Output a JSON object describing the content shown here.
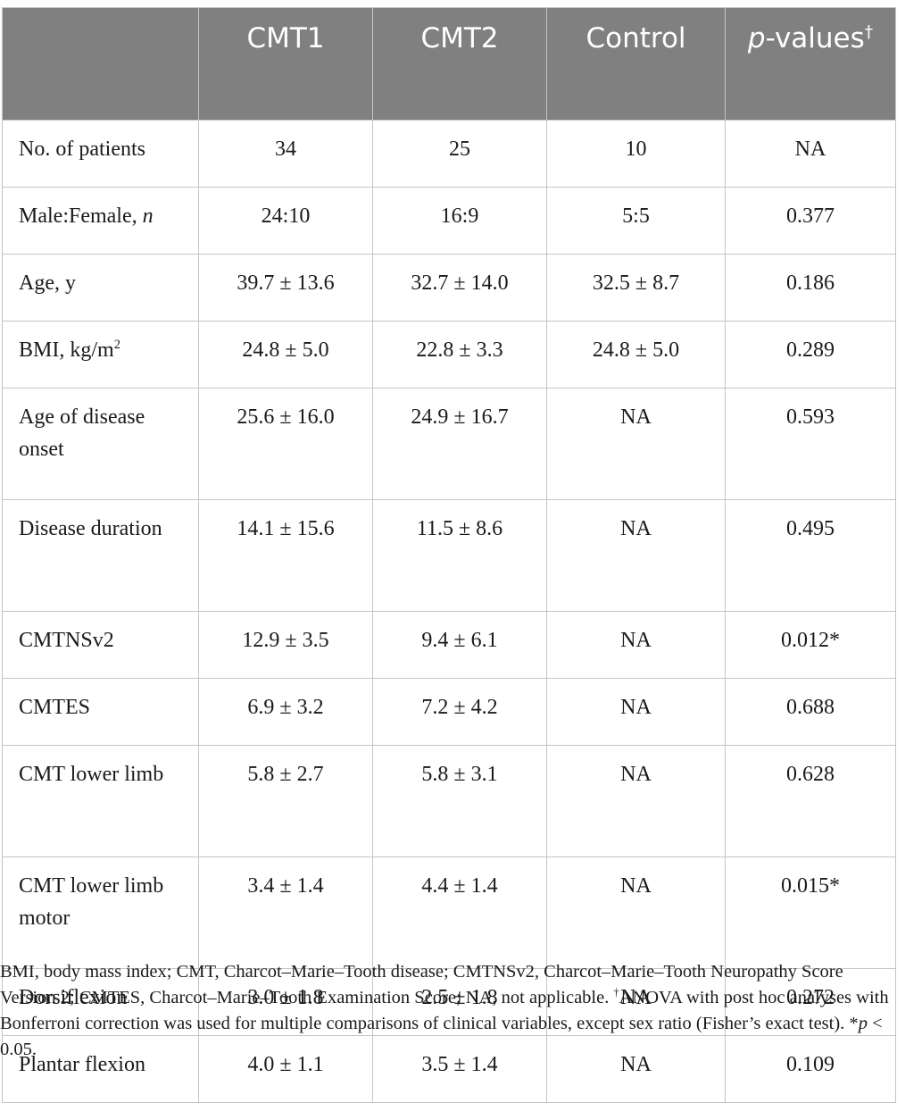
{
  "table": {
    "header": {
      "cmt1": "CMT1",
      "cmt2": "CMT2",
      "control": "Control",
      "p_italic": "p",
      "p_rest": "-values",
      "p_mark": "†"
    },
    "rows": [
      {
        "label": "No. of patients",
        "cmt1": "34",
        "cmt2": "25",
        "control": "10",
        "p": "NA"
      },
      {
        "label": "Male:Female, ",
        "label_italic": "n",
        "cmt1": "24:10",
        "cmt2": "16:9",
        "control": "5:5",
        "p": "0.377"
      },
      {
        "label": "Age, y",
        "cmt1": "39.7 ± 13.6",
        "cmt2": "32.7 ± 14.0",
        "control": "32.5 ± 8.7",
        "p": "0.186"
      },
      {
        "label": "BMI, kg/m",
        "label_sup": "2",
        "cmt1": "24.8 ± 5.0",
        "cmt2": "22.8 ± 3.3",
        "control": "24.8 ± 5.0",
        "p": "0.289"
      },
      {
        "label": "Age of disease onset",
        "cmt1": "25.6 ± 16.0",
        "cmt2": "24.9 ± 16.7",
        "control": "NA",
        "p": "0.593"
      },
      {
        "label": "Disease duration",
        "cmt1": "14.1 ± 15.6",
        "cmt2": "11.5 ± 8.6",
        "control": "NA",
        "p": "0.495"
      },
      {
        "label": "CMTNSv2",
        "cmt1": "12.9 ± 3.5",
        "cmt2": "9.4 ± 6.1",
        "control": "NA",
        "p": "0.012*"
      },
      {
        "label": "CMTES",
        "cmt1": "6.9 ± 3.2",
        "cmt2": "7.2 ± 4.2",
        "control": "NA",
        "p": "0.688"
      },
      {
        "label": "CMT lower limb",
        "cmt1": "5.8 ± 2.7",
        "cmt2": "5.8 ± 3.1",
        "control": "NA",
        "p": "0.628"
      },
      {
        "label": "CMT lower limb motor",
        "cmt1": "3.4 ± 1.4",
        "cmt2": "4.4 ± 1.4",
        "control": "NA",
        "p": "0.015*"
      },
      {
        "label": "Dorsiflexion",
        "cmt1": "3.0 ± 1.8",
        "cmt2": "2.5 ± 1.8",
        "control": "NA",
        "p": "0.272"
      },
      {
        "label": "Plantar flexion",
        "cmt1": "4.0 ± 1.1",
        "cmt2": "3.5 ± 1.4",
        "control": "NA",
        "p": "0.109"
      }
    ]
  },
  "footnote": {
    "part1": "BMI, body mass index; CMT, Charcot–Marie–Tooth disease; CMTNSv2, Charcot–Marie–Tooth Neuropathy Score Version 2; CMTES, Charcot–Marie–Tooth Examination Score; NA, not applicable. ",
    "dagger": "†",
    "part2": "ANOVA with post hoc analyses with Bonferroni correction was used for multiple comparisons of clinical variables, except sex ratio (Fisher’s exact test). *",
    "p_italic": "p",
    "part3": " < 0.05."
  }
}
